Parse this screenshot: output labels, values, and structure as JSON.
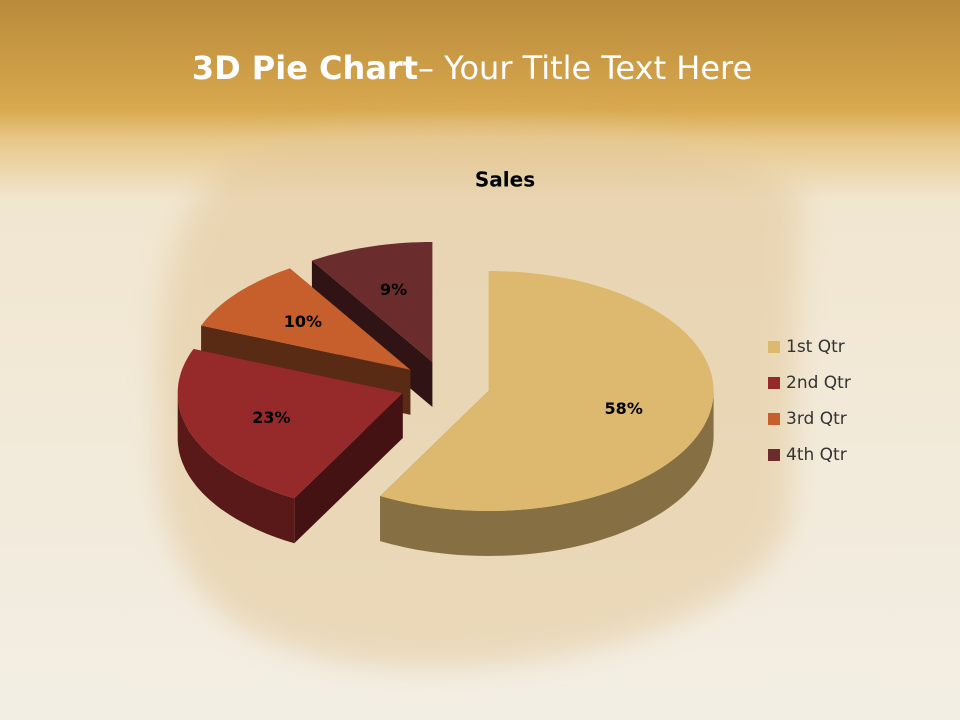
{
  "slide": {
    "title_bold": "3D Pie Chart",
    "title_rest": "– Your Title Text Here"
  },
  "chart_data": {
    "type": "pie",
    "title": "Sales",
    "categories": [
      "1st Qtr",
      "2nd Qtr",
      "3rd Qtr",
      "4th Qtr"
    ],
    "values": [
      58,
      23,
      10,
      9
    ],
    "value_labels": [
      "58%",
      "23%",
      "10%",
      "9%"
    ],
    "colors": [
      "#ddb96f",
      "#96292a",
      "#c65f2c",
      "#6b2c2e"
    ],
    "legend": "right"
  }
}
